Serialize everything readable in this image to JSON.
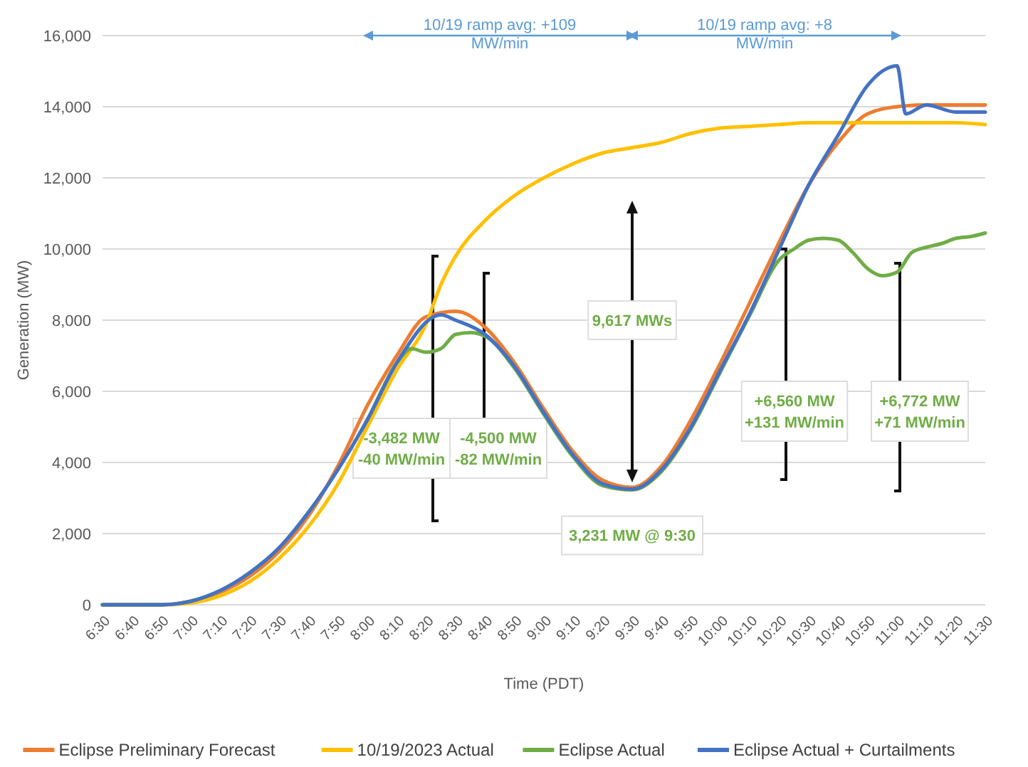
{
  "chart_data": {
    "type": "line",
    "xlabel": "Time (PDT)",
    "ylabel": "Generation (MW)",
    "xlim": [
      6.5,
      11.5
    ],
    "xticks": [
      {
        "value": 6.5,
        "label": "6:30"
      },
      {
        "value": 6.6667,
        "label": "6:40"
      },
      {
        "value": 6.8333,
        "label": "6:50"
      },
      {
        "value": 7,
        "label": "7:00"
      },
      {
        "value": 7.1667,
        "label": "7:10"
      },
      {
        "value": 7.3333,
        "label": "7:20"
      },
      {
        "value": 7.5,
        "label": "7:30"
      },
      {
        "value": 7.6667,
        "label": "7:40"
      },
      {
        "value": 7.8333,
        "label": "7:50"
      },
      {
        "value": 8,
        "label": "8:00"
      },
      {
        "value": 8.1667,
        "label": "8:10"
      },
      {
        "value": 8.3333,
        "label": "8:20"
      },
      {
        "value": 8.5,
        "label": "8:30"
      },
      {
        "value": 8.6667,
        "label": "8:40"
      },
      {
        "value": 8.8333,
        "label": "8:50"
      },
      {
        "value": 9,
        "label": "9:00"
      },
      {
        "value": 9.1667,
        "label": "9:10"
      },
      {
        "value": 9.3333,
        "label": "9:20"
      },
      {
        "value": 9.5,
        "label": "9:30"
      },
      {
        "value": 9.6667,
        "label": "9:40"
      },
      {
        "value": 9.8333,
        "label": "9:50"
      },
      {
        "value": 10,
        "label": "10:00"
      },
      {
        "value": 10.1667,
        "label": "10:10"
      },
      {
        "value": 10.3333,
        "label": "10:20"
      },
      {
        "value": 10.5,
        "label": "10:30"
      },
      {
        "value": 10.6667,
        "label": "10:40"
      },
      {
        "value": 10.8333,
        "label": "10:50"
      },
      {
        "value": 11,
        "label": "11:00"
      },
      {
        "value": 11.1667,
        "label": "11:10"
      },
      {
        "value": 11.3333,
        "label": "11:20"
      },
      {
        "value": 11.5,
        "label": "11:30"
      }
    ],
    "ylim": [
      0,
      16000
    ],
    "yticks": [
      {
        "value": 0,
        "label": "0"
      },
      {
        "value": 2000,
        "label": "2,000"
      },
      {
        "value": 4000,
        "label": "4,000"
      },
      {
        "value": 6000,
        "label": "6,000"
      },
      {
        "value": 8000,
        "label": "8,000"
      },
      {
        "value": 10000,
        "label": "10,000"
      },
      {
        "value": 12000,
        "label": "12,000"
      },
      {
        "value": 14000,
        "label": "14,000"
      },
      {
        "value": 16000,
        "label": "16,000"
      }
    ],
    "grid": "y",
    "legend": "bottom",
    "marker": "none",
    "line_style": "solid",
    "series": [
      {
        "name": "Eclipse Preliminary Forecast",
        "color": "#ed7d31",
        "x": [
          6.5,
          6.8333,
          7,
          7.1667,
          7.3333,
          7.5,
          7.6667,
          7.8333,
          8,
          8.1667,
          8.3333,
          8.5,
          8.6667,
          8.8333,
          9,
          9.1667,
          9.3333,
          9.5,
          9.6667,
          9.8333,
          10,
          10.1667,
          10.3333,
          10.5,
          10.6667,
          10.8333,
          11,
          11.1667,
          11.3333,
          11.5
        ],
        "values": [
          0,
          0,
          100,
          350,
          800,
          1500,
          2500,
          3900,
          5600,
          7000,
          8100,
          8250,
          7800,
          6800,
          5500,
          4300,
          3500,
          3300,
          3900,
          5200,
          6800,
          8500,
          10200,
          11800,
          13000,
          13800,
          14000,
          14050,
          14050,
          14050
        ]
      },
      {
        "name": "10/19/2023 Actual",
        "color": "#ffc000",
        "x": [
          6.5,
          6.8333,
          7,
          7.1667,
          7.3333,
          7.5,
          7.6667,
          7.8333,
          8,
          8.1667,
          8.3333,
          8.4167,
          8.5,
          8.6667,
          8.8333,
          9,
          9.1667,
          9.3333,
          9.5,
          9.6667,
          9.8333,
          10,
          10.1667,
          10.3333,
          10.5,
          10.6667,
          10.8333,
          11,
          11.1667,
          11.3333,
          11.5
        ],
        "values": [
          0,
          0,
          50,
          250,
          650,
          1300,
          2200,
          3400,
          5000,
          6600,
          7900,
          9000,
          9800,
          10800,
          11500,
          12000,
          12400,
          12700,
          12850,
          13000,
          13250,
          13400,
          13450,
          13500,
          13550,
          13550,
          13550,
          13550,
          13550,
          13550,
          13500
        ]
      },
      {
        "name": "Eclipse Actual",
        "color": "#70ad47",
        "x": [
          6.5,
          6.8333,
          7,
          7.1667,
          7.3333,
          7.5,
          7.6667,
          7.8333,
          8,
          8.1667,
          8.25,
          8.3333,
          8.4167,
          8.5,
          8.5833,
          8.6667,
          8.8333,
          9,
          9.1667,
          9.3333,
          9.5,
          9.6667,
          9.8333,
          10,
          10.1667,
          10.3333,
          10.4167,
          10.5,
          10.5833,
          10.6667,
          10.75,
          10.8333,
          10.9167,
          11,
          11.0833,
          11.1667,
          11.25,
          11.3333,
          11.4167,
          11.5
        ],
        "values": [
          0,
          0,
          100,
          400,
          900,
          1600,
          2600,
          3800,
          5200,
          6800,
          7200,
          7100,
          7200,
          7600,
          7650,
          7550,
          6650,
          5350,
          4150,
          3350,
          3231,
          3750,
          4950,
          6550,
          8150,
          9700,
          10000,
          10250,
          10300,
          10250,
          9900,
          9450,
          9250,
          9350,
          9900,
          10050,
          10150,
          10300,
          10350,
          10450
        ]
      },
      {
        "name": "Eclipse Actual + Curtailments",
        "color": "#4472c4",
        "x": [
          6.5,
          6.8333,
          7,
          7.1667,
          7.3333,
          7.5,
          7.6667,
          7.8333,
          8,
          8.1667,
          8.4167,
          8.5,
          8.6667,
          8.8333,
          9,
          9.1667,
          9.3333,
          9.5,
          9.6667,
          9.8333,
          10,
          10.1667,
          10.3333,
          10.5,
          10.6667,
          10.8333,
          10.9167,
          11,
          11.05,
          11.1667,
          11.3333,
          11.5
        ],
        "values": [
          0,
          0,
          100,
          400,
          900,
          1600,
          2600,
          3800,
          5200,
          6800,
          8150,
          8000,
          7600,
          6700,
          5400,
          4200,
          3400,
          3250,
          3800,
          5000,
          6600,
          8200,
          10000,
          11800,
          13200,
          14600,
          15000,
          15150,
          13800,
          14050,
          13850,
          13850
        ]
      }
    ],
    "annotations": [
      "10/19 ramp avg: +109\nMW/min",
      "10/19 ramp avg: +8\nMW/min",
      "9,617 MWs",
      {
        "text": "3,231 MW @ 9:30",
        "x": 9.5,
        "y": 3231
      },
      "-3,482 MW\n-40 MW/min",
      "-4,500 MW\n-82 MW/min",
      "+6,560 MW\n+131 MW/min",
      "+6,772 MW\n+71 MW/min"
    ]
  }
}
